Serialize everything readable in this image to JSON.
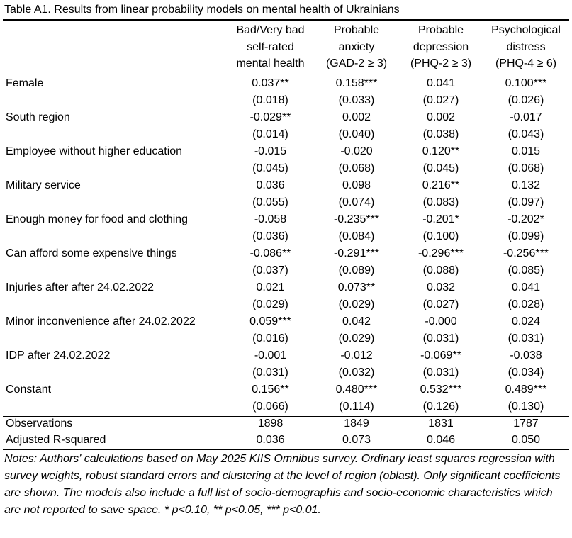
{
  "title": "Table A1. Results from linear probability models on mental health of Ukrainians",
  "columns": [
    {
      "lines": [
        "Bad/Very bad",
        "self-rated",
        "mental health"
      ]
    },
    {
      "lines": [
        "Probable",
        "anxiety",
        "(GAD-2 ≥ 3)"
      ]
    },
    {
      "lines": [
        "Probable",
        "depression",
        "(PHQ-2 ≥ 3)"
      ]
    },
    {
      "lines": [
        "Psychological",
        "distress",
        "(PHQ-4 ≥ 6)"
      ]
    }
  ],
  "rows": [
    {
      "label": "Female",
      "coef": [
        "0.037**",
        "0.158***",
        "0.041",
        "0.100***"
      ],
      "se": [
        "(0.018)",
        "(0.033)",
        "(0.027)",
        "(0.026)"
      ]
    },
    {
      "label": "South region",
      "coef": [
        "-0.029**",
        "0.002",
        "0.002",
        "-0.017"
      ],
      "se": [
        "(0.014)",
        "(0.040)",
        "(0.038)",
        "(0.043)"
      ]
    },
    {
      "label": "Employee without higher education",
      "coef": [
        "-0.015",
        "-0.020",
        "0.120**",
        "0.015"
      ],
      "se": [
        "(0.045)",
        "(0.068)",
        "(0.045)",
        "(0.068)"
      ]
    },
    {
      "label": "Military service",
      "coef": [
        "0.036",
        "0.098",
        "0.216**",
        "0.132"
      ],
      "se": [
        "(0.055)",
        "(0.074)",
        "(0.083)",
        "(0.097)"
      ]
    },
    {
      "label": "Enough money for food and clothing",
      "coef": [
        "-0.058",
        "-0.235***",
        "-0.201*",
        "-0.202*"
      ],
      "se": [
        "(0.036)",
        "(0.084)",
        "(0.100)",
        "(0.099)"
      ]
    },
    {
      "label": "Can afford some expensive things",
      "coef": [
        "-0.086**",
        "-0.291***",
        "-0.296***",
        "-0.256***"
      ],
      "se": [
        "(0.037)",
        "(0.089)",
        "(0.088)",
        "(0.085)"
      ]
    },
    {
      "label": "Injuries after after 24.02.2022",
      "coef": [
        "0.021",
        "0.073**",
        "0.032",
        "0.041"
      ],
      "se": [
        "(0.029)",
        "(0.029)",
        "(0.027)",
        "(0.028)"
      ]
    },
    {
      "label": "Minor inconvenience after 24.02.2022",
      "coef": [
        "0.059***",
        "0.042",
        "-0.000",
        "0.024"
      ],
      "se": [
        "(0.016)",
        "(0.029)",
        "(0.031)",
        "(0.031)"
      ]
    },
    {
      "label": "IDP after 24.02.2022",
      "coef": [
        "-0.001",
        "-0.012",
        "-0.069**",
        "-0.038"
      ],
      "se": [
        "(0.031)",
        "(0.032)",
        "(0.031)",
        "(0.034)"
      ]
    },
    {
      "label": "Constant",
      "coef": [
        "0.156**",
        "0.480***",
        "0.532***",
        "0.489***"
      ],
      "se": [
        "(0.066)",
        "(0.114)",
        "(0.126)",
        "(0.130)"
      ]
    }
  ],
  "stats": [
    {
      "label": "Observations",
      "values": [
        "1898",
        "1849",
        "1831",
        "1787"
      ]
    },
    {
      "label": "Adjusted R-squared",
      "values": [
        "0.036",
        "0.073",
        "0.046",
        "0.050"
      ]
    }
  ],
  "notes": "Notes: Authors' calculations based on May 2025 KIIS Omnibus survey. Ordinary least squares regression with survey weights, robust standard errors and clustering at the level of region (oblast). Only significant coefficients are shown. The models also include a full list of socio-demographis and socio-economic characteristics which are not reported to save space. * p<0.10, ** p<0.05, *** p<0.01."
}
